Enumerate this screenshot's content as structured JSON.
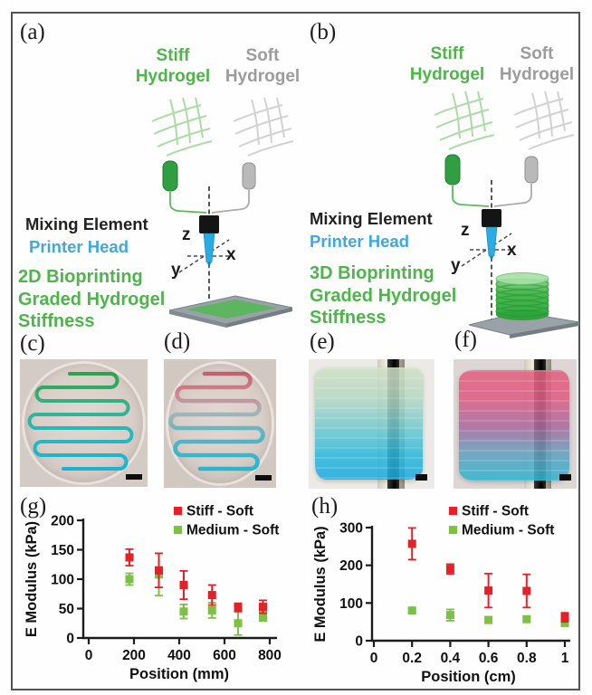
{
  "figure": {
    "panel_labels": {
      "a": "(a)",
      "b": "(b)",
      "c": "(c)",
      "d": "(d)",
      "e": "(e)",
      "f": "(f)",
      "g": "(g)",
      "h": "(h)"
    }
  },
  "diagram": {
    "stiff_line1": "Stiff",
    "stiff_line2": "Hydrogel",
    "soft_line1": "Soft",
    "soft_line2": "Hydrogel",
    "mixing_element": "Mixing Element",
    "printer_head": "Printer Head",
    "mode_a_line1": "2D Bioprinting",
    "mode_b_line1": "3D Bioprinting",
    "mode_line2": "Graded Hydrogel",
    "mode_line3": "Stiffness",
    "axis_z": "z",
    "axis_x": "x",
    "axis_y": "y",
    "colors": {
      "stiff_green": "#4cb648",
      "soft_gray": "#9c9c9c",
      "printer_blue": "#3fa8dc",
      "mixing_black": "#222222"
    }
  },
  "chart_data": [
    {
      "type": "scatter",
      "panel": "g",
      "xlabel": "Position (mm)",
      "ylabel": "E Modulus (kPa)",
      "xlim": [
        0,
        830
      ],
      "ylim": [
        0,
        200
      ],
      "xticks": [
        0,
        200,
        400,
        600,
        800
      ],
      "yticks": [
        0,
        50,
        100,
        150,
        200
      ],
      "grid": false,
      "legend_position": "top-right",
      "series": [
        {
          "name": "Stiff - Soft",
          "color": "#e32127",
          "x": [
            180,
            310,
            420,
            545,
            660,
            770
          ],
          "y": [
            137,
            115,
            90,
            73,
            52,
            53
          ],
          "yerr": [
            14,
            29,
            24,
            17,
            7,
            11
          ]
        },
        {
          "name": "Medium - Soft",
          "color": "#7bc143",
          "x": [
            180,
            310,
            420,
            545,
            660,
            770
          ],
          "y": [
            100,
            108,
            45,
            47,
            25,
            37
          ],
          "yerr": [
            10,
            36,
            12,
            13,
            20,
            8
          ]
        }
      ]
    },
    {
      "type": "scatter",
      "panel": "h",
      "xlabel": "Position (cm)",
      "ylabel": "E Modulus (kPa)",
      "xlim": [
        0,
        1.04
      ],
      "ylim": [
        0,
        300
      ],
      "xticks": [
        0,
        0.2,
        0.4,
        0.6,
        0.8,
        1
      ],
      "yticks": [
        0,
        100,
        200,
        300
      ],
      "grid": false,
      "legend_position": "top-right",
      "series": [
        {
          "name": "Stiff - Soft",
          "color": "#e32127",
          "x": [
            0.2,
            0.4,
            0.6,
            0.8,
            1.0
          ],
          "y": [
            257,
            190,
            133,
            132,
            62
          ],
          "yerr": [
            42,
            13,
            45,
            44,
            12
          ]
        },
        {
          "name": "Medium - Soft",
          "color": "#7bc143",
          "x": [
            0.2,
            0.4,
            0.6,
            0.8,
            1.0
          ],
          "y": [
            80,
            68,
            55,
            57,
            47
          ],
          "yerr": [
            5,
            15,
            8,
            5,
            8
          ]
        }
      ]
    }
  ]
}
